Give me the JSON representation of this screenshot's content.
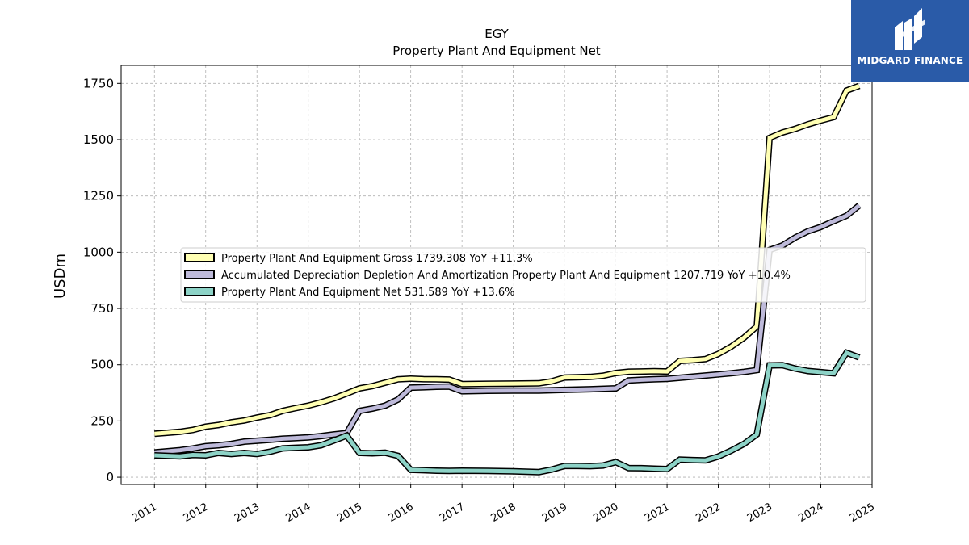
{
  "branding": {
    "logo_text": "MIDGARD FINANCE",
    "logo_bg": "#2a5ba8"
  },
  "chart_data": {
    "type": "line",
    "title": "EGY",
    "subtitle": "Property Plant And Equipment Net",
    "xlabel": "",
    "ylabel": "USDm",
    "xlim": [
      2010.35,
      2025.0
    ],
    "ylim": [
      -32,
      1830
    ],
    "x_ticks": [
      "2011",
      "2012",
      "2013",
      "2014",
      "2015",
      "2016",
      "2017",
      "2018",
      "2019",
      "2020",
      "2021",
      "2022",
      "2023",
      "2024",
      "2025"
    ],
    "y_ticks": [
      0,
      250,
      500,
      750,
      1000,
      1250,
      1500,
      1750
    ],
    "grid": true,
    "legend_position": "center-left",
    "series": [
      {
        "name": "Property Plant And Equipment Gross",
        "legend_label": "Property Plant And Equipment Gross  1739.308 YoY +11.3%",
        "color": "#ffffb3",
        "points": [
          [
            2011.0,
            193
          ],
          [
            2011.5,
            202
          ],
          [
            2011.75,
            210
          ],
          [
            2012.0,
            225
          ],
          [
            2012.25,
            232
          ],
          [
            2012.5,
            244
          ],
          [
            2012.75,
            252
          ],
          [
            2013.0,
            265
          ],
          [
            2013.25,
            276
          ],
          [
            2013.5,
            295
          ],
          [
            2013.75,
            307
          ],
          [
            2014.0,
            318
          ],
          [
            2014.25,
            333
          ],
          [
            2014.5,
            350
          ],
          [
            2014.75,
            372
          ],
          [
            2015.0,
            395
          ],
          [
            2015.25,
            405
          ],
          [
            2015.5,
            420
          ],
          [
            2015.75,
            435
          ],
          [
            2016.0,
            438
          ],
          [
            2016.25,
            436
          ],
          [
            2016.5,
            435
          ],
          [
            2016.75,
            434
          ],
          [
            2017.0,
            414
          ],
          [
            2017.5,
            415
          ],
          [
            2018.0,
            416
          ],
          [
            2018.5,
            417
          ],
          [
            2018.75,
            426
          ],
          [
            2019.0,
            443
          ],
          [
            2019.25,
            444
          ],
          [
            2019.5,
            446
          ],
          [
            2019.75,
            451
          ],
          [
            2020.0,
            463
          ],
          [
            2020.25,
            469
          ],
          [
            2020.5,
            470
          ],
          [
            2020.75,
            471
          ],
          [
            2021.0,
            470
          ],
          [
            2021.25,
            517
          ],
          [
            2021.5,
            520
          ],
          [
            2021.75,
            525
          ],
          [
            2022.0,
            548
          ],
          [
            2022.25,
            580
          ],
          [
            2022.5,
            620
          ],
          [
            2022.75,
            670
          ],
          [
            2023.0,
            1508
          ],
          [
            2023.25,
            1532
          ],
          [
            2023.5,
            1548
          ],
          [
            2023.75,
            1568
          ],
          [
            2024.0,
            1585
          ],
          [
            2024.25,
            1600
          ],
          [
            2024.5,
            1718
          ],
          [
            2024.75,
            1739
          ]
        ]
      },
      {
        "name": "Accumulated Depreciation Depletion And Amortization Property Plant And Equipment",
        "legend_label": "Accumulated Depreciation Depletion And Amortization Property Plant And Equipment  1207.719 YoY +10.4%",
        "color": "#bebada",
        "points": [
          [
            2011.0,
            110
          ],
          [
            2011.5,
            120
          ],
          [
            2011.75,
            128
          ],
          [
            2012.0,
            138
          ],
          [
            2012.25,
            142
          ],
          [
            2012.5,
            148
          ],
          [
            2012.75,
            158
          ],
          [
            2013.0,
            162
          ],
          [
            2013.25,
            166
          ],
          [
            2013.5,
            171
          ],
          [
            2013.75,
            174
          ],
          [
            2014.0,
            177
          ],
          [
            2014.25,
            183
          ],
          [
            2014.5,
            190
          ],
          [
            2014.75,
            196
          ],
          [
            2015.0,
            295
          ],
          [
            2015.25,
            305
          ],
          [
            2015.5,
            318
          ],
          [
            2015.75,
            345
          ],
          [
            2016.0,
            398
          ],
          [
            2016.25,
            400
          ],
          [
            2016.5,
            402
          ],
          [
            2016.75,
            403
          ],
          [
            2017.0,
            382
          ],
          [
            2017.5,
            384
          ],
          [
            2018.0,
            385
          ],
          [
            2018.5,
            385
          ],
          [
            2019.0,
            388
          ],
          [
            2019.5,
            391
          ],
          [
            2020.0,
            395
          ],
          [
            2020.25,
            430
          ],
          [
            2020.5,
            433
          ],
          [
            2020.75,
            435
          ],
          [
            2021.0,
            437
          ],
          [
            2021.25,
            442
          ],
          [
            2021.5,
            447
          ],
          [
            2021.75,
            452
          ],
          [
            2022.0,
            457
          ],
          [
            2022.25,
            462
          ],
          [
            2022.5,
            468
          ],
          [
            2022.75,
            476
          ],
          [
            2023.0,
            1010
          ],
          [
            2023.25,
            1030
          ],
          [
            2023.5,
            1065
          ],
          [
            2023.75,
            1093
          ],
          [
            2024.0,
            1112
          ],
          [
            2024.25,
            1138
          ],
          [
            2024.5,
            1162
          ],
          [
            2024.75,
            1208
          ]
        ]
      },
      {
        "name": "Property Plant And Equipment Net",
        "legend_label": "Property Plant And Equipment Net  531.589 YoY +13.6%",
        "color": "#8dd3c7",
        "points": [
          [
            2011.0,
            97
          ],
          [
            2011.5,
            93
          ],
          [
            2011.75,
            99
          ],
          [
            2012.0,
            97
          ],
          [
            2012.25,
            108
          ],
          [
            2012.5,
            103
          ],
          [
            2012.75,
            108
          ],
          [
            2013.0,
            103
          ],
          [
            2013.25,
            113
          ],
          [
            2013.5,
            128
          ],
          [
            2013.75,
            131
          ],
          [
            2014.0,
            133
          ],
          [
            2014.25,
            142
          ],
          [
            2014.5,
            163
          ],
          [
            2014.75,
            185
          ],
          [
            2015.0,
            108
          ],
          [
            2015.25,
            106
          ],
          [
            2015.5,
            109
          ],
          [
            2015.75,
            95
          ],
          [
            2016.0,
            33
          ],
          [
            2016.25,
            31
          ],
          [
            2016.5,
            29
          ],
          [
            2016.75,
            28
          ],
          [
            2017.0,
            29
          ],
          [
            2017.5,
            28
          ],
          [
            2018.0,
            26
          ],
          [
            2018.5,
            23
          ],
          [
            2018.75,
            34
          ],
          [
            2019.0,
            50
          ],
          [
            2019.25,
            50
          ],
          [
            2019.5,
            49
          ],
          [
            2019.75,
            52
          ],
          [
            2020.0,
            67
          ],
          [
            2020.25,
            41
          ],
          [
            2020.5,
            40
          ],
          [
            2020.75,
            38
          ],
          [
            2021.0,
            36
          ],
          [
            2021.25,
            78
          ],
          [
            2021.5,
            76
          ],
          [
            2021.75,
            75
          ],
          [
            2022.0,
            92
          ],
          [
            2022.25,
            118
          ],
          [
            2022.5,
            148
          ],
          [
            2022.75,
            190
          ],
          [
            2023.0,
            497
          ],
          [
            2023.25,
            498
          ],
          [
            2023.5,
            483
          ],
          [
            2023.75,
            472
          ],
          [
            2024.0,
            467
          ],
          [
            2024.25,
            462
          ],
          [
            2024.5,
            553
          ],
          [
            2024.75,
            532
          ]
        ]
      }
    ]
  }
}
